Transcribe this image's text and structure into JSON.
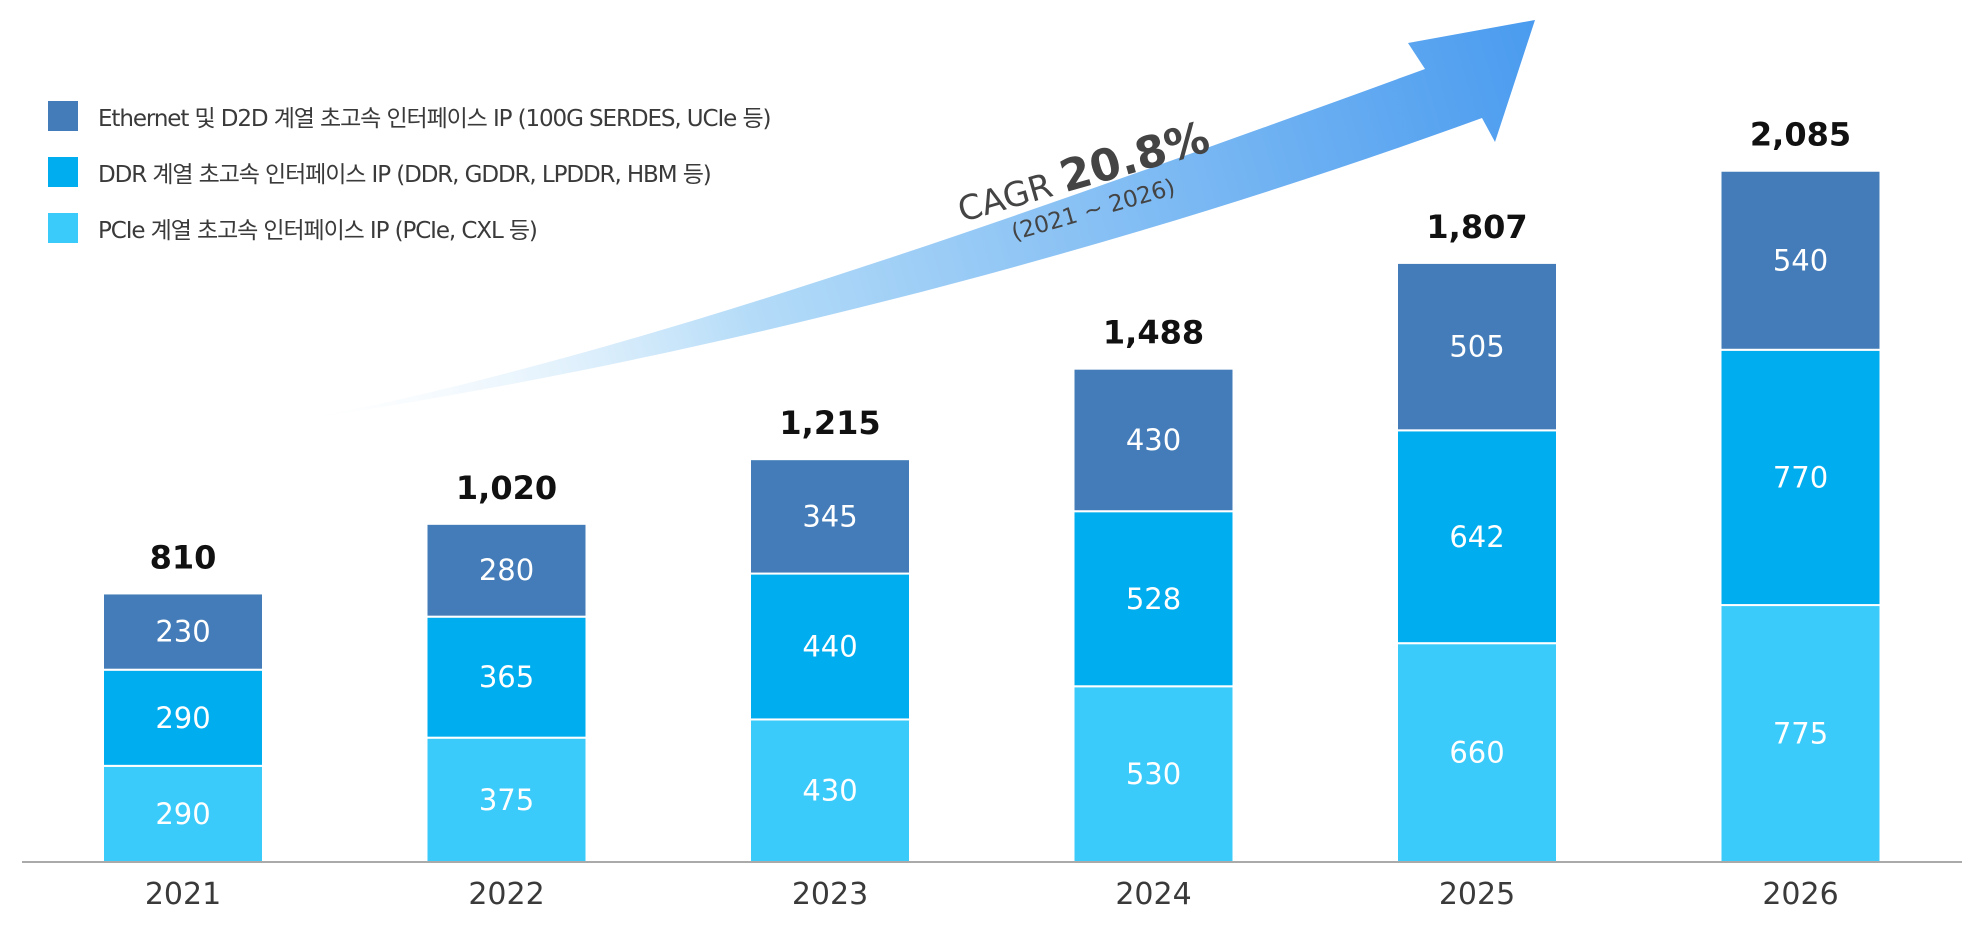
{
  "chart_data": {
    "type": "bar",
    "stacked": true,
    "categories": [
      "2021",
      "2022",
      "2023",
      "2024",
      "2025",
      "2026"
    ],
    "series": [
      {
        "key": "pcie",
        "name": "PCIe 계열 초고속 인터페이스 IP (PCIe, CXL 등)",
        "color": "#3ACBFA",
        "values": [
          290,
          375,
          430,
          530,
          660,
          775
        ]
      },
      {
        "key": "ddr",
        "name": "DDR 계열 초고속 인터페이스 IP (DDR, GDDR, LPDDR, HBM 등)",
        "color": "#00AEEF",
        "values": [
          290,
          365,
          440,
          528,
          642,
          770
        ]
      },
      {
        "key": "ethernet",
        "name": "Ethernet 및 D2D 계열 초고속 인터페이스 IP (100G SERDES, UCIe 등)",
        "color": "#437CB8",
        "values": [
          230,
          280,
          345,
          430,
          505,
          540
        ]
      }
    ],
    "totals": [
      "810",
      "1,020",
      "1,215",
      "1,488",
      "1,807",
      "2,085"
    ],
    "segment_labels": [
      [
        "290",
        "375",
        "430",
        "530",
        "660",
        "775"
      ],
      [
        "290",
        "365",
        "440",
        "528",
        "642",
        "770"
      ],
      [
        "230",
        "280",
        "345",
        "430",
        "505",
        "540"
      ]
    ],
    "legend_order": [
      "ethernet",
      "ddr",
      "pcie"
    ],
    "legend_position": "top-left",
    "ylim": [
      0,
      2600
    ],
    "grid": false,
    "annotation": {
      "prefix": "CAGR",
      "value": "20.8%",
      "period": "(2021 ~ 2026)",
      "arrow_color": "#4A9BEF"
    }
  }
}
